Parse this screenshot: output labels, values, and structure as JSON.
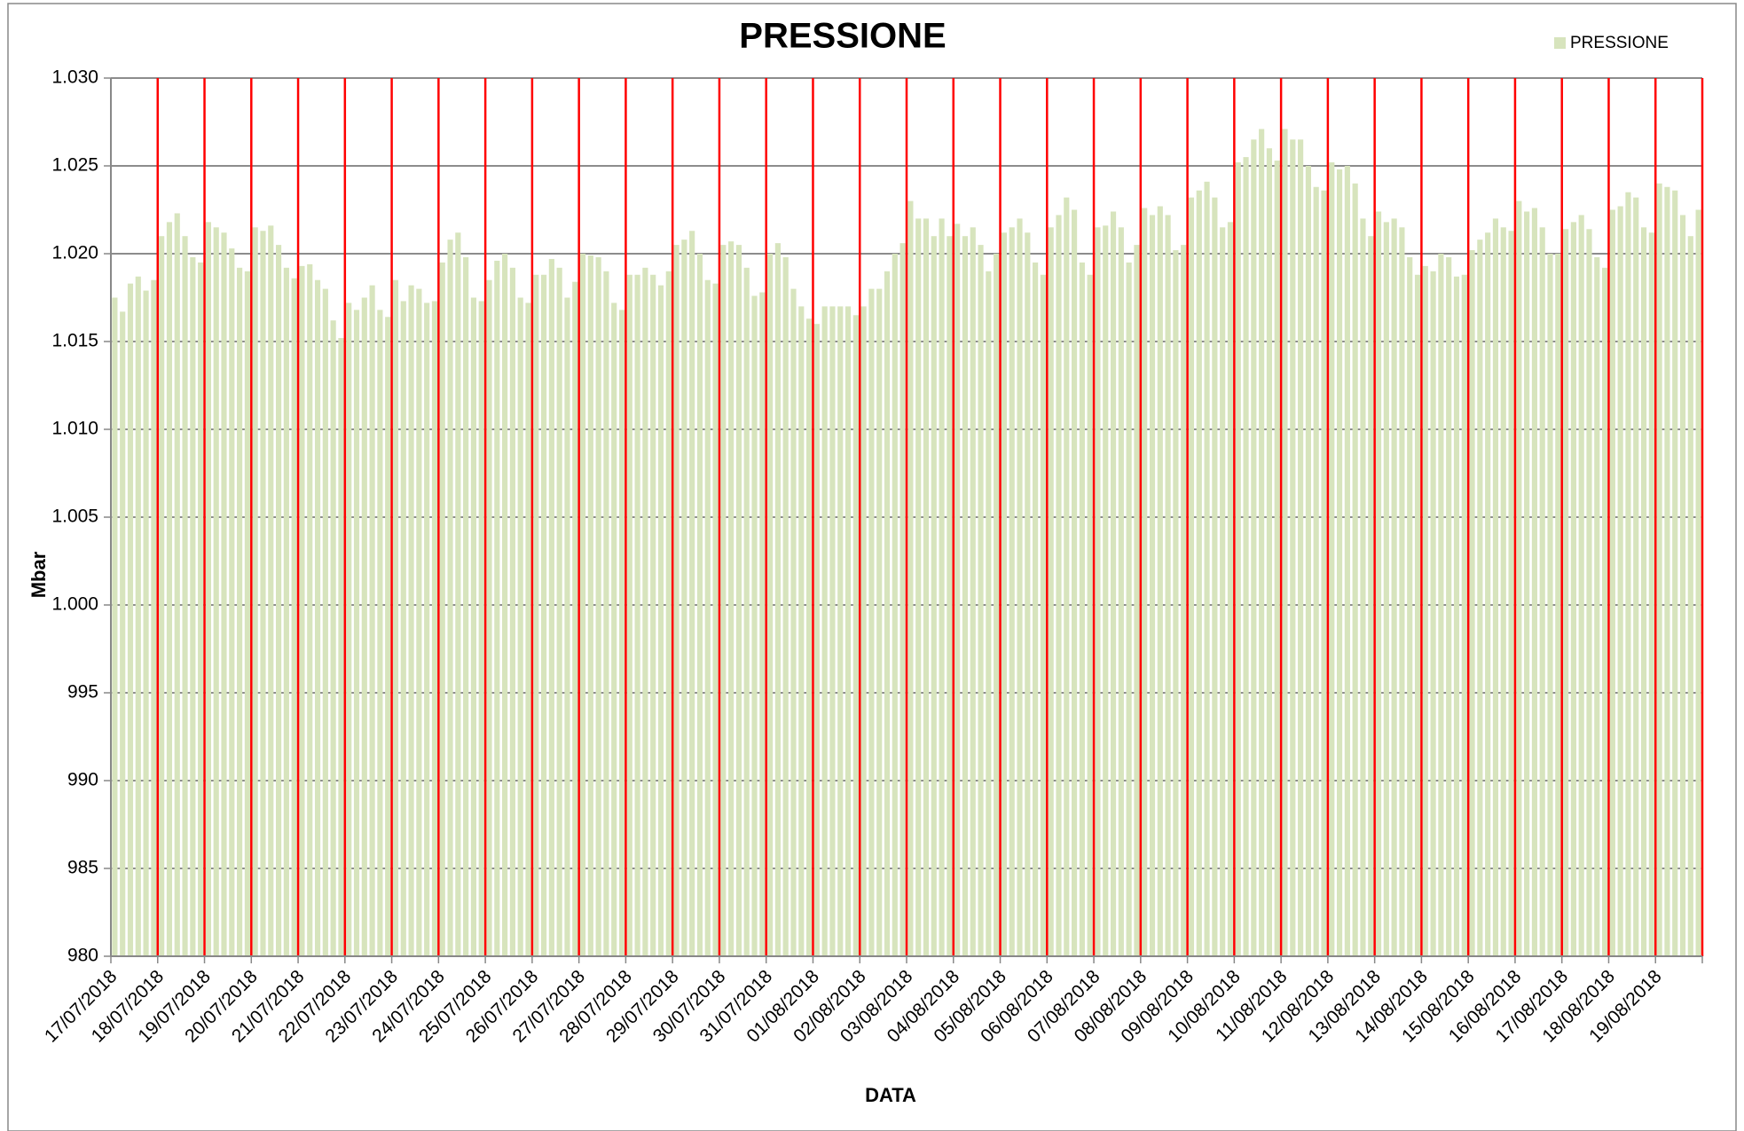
{
  "chart_data": {
    "type": "bar",
    "title": "PRESSIONE",
    "x_label": "DATA",
    "y_label": "Mbar",
    "legend_position": "top-right",
    "grid": true,
    "xgrid_color": "#ff0000",
    "grid_color": "#8c8c8c",
    "ylim": [
      980,
      1030
    ],
    "yticks": [
      980,
      985,
      990,
      995,
      {
        "value": 1000,
        "label": "1.000"
      },
      {
        "value": 1005,
        "label": "1.005"
      },
      {
        "value": 1010,
        "label": "1.010"
      },
      {
        "value": 1015,
        "label": "1.015"
      },
      {
        "value": 1020,
        "label": "1.020"
      },
      {
        "value": 1025,
        "label": "1.025"
      },
      {
        "value": 1030,
        "label": "1.030"
      }
    ],
    "categories": [
      "17/07/2018",
      null,
      null,
      null,
      null,
      null,
      "18/07/2018",
      null,
      null,
      null,
      null,
      null,
      "19/07/2018",
      null,
      null,
      null,
      null,
      null,
      "20/07/2018",
      null,
      null,
      null,
      null,
      null,
      "21/07/2018",
      null,
      null,
      null,
      null,
      null,
      "22/07/2018",
      null,
      null,
      null,
      null,
      null,
      "23/07/2018",
      null,
      null,
      null,
      null,
      null,
      "24/07/2018",
      null,
      null,
      null,
      null,
      null,
      "25/07/2018",
      null,
      null,
      null,
      null,
      null,
      "26/07/2018",
      null,
      null,
      null,
      null,
      null,
      "27/07/2018",
      null,
      null,
      null,
      null,
      null,
      "28/07/2018",
      null,
      null,
      null,
      null,
      null,
      "29/07/2018",
      null,
      null,
      null,
      null,
      null,
      "30/07/2018",
      null,
      null,
      null,
      null,
      null,
      "31/07/2018",
      null,
      null,
      null,
      null,
      null,
      "01/08/2018",
      null,
      null,
      null,
      null,
      null,
      "02/08/2018",
      null,
      null,
      null,
      null,
      null,
      "03/08/2018",
      null,
      null,
      null,
      null,
      null,
      "04/08/2018",
      null,
      null,
      null,
      null,
      null,
      "05/08/2018",
      null,
      null,
      null,
      null,
      null,
      "06/08/2018",
      null,
      null,
      null,
      null,
      null,
      "07/08/2018",
      null,
      null,
      null,
      null,
      null,
      "08/08/2018",
      null,
      null,
      null,
      null,
      null,
      "09/08/2018",
      null,
      null,
      null,
      null,
      null,
      "10/08/2018",
      null,
      null,
      null,
      null,
      null,
      "11/08/2018",
      null,
      null,
      null,
      null,
      null,
      "12/08/2018",
      null,
      null,
      null,
      null,
      null,
      "13/08/2018",
      null,
      null,
      null,
      null,
      null,
      "14/08/2018",
      null,
      null,
      null,
      null,
      null,
      "15/08/2018",
      null,
      null,
      null,
      null,
      null,
      "16/08/2018",
      null,
      null,
      null,
      null,
      null,
      "17/08/2018",
      null,
      null,
      null,
      null,
      null,
      "18/08/2018",
      null,
      null,
      null,
      null,
      null,
      "19/08/2018",
      null,
      null,
      null,
      null,
      null
    ],
    "series": [
      {
        "name": "PRESSIONE",
        "color": "#d7e4bd",
        "values": [
          1017.5,
          1016.7,
          1018.3,
          1018.7,
          1017.9,
          1018.5,
          1021,
          1021.8,
          1022.3,
          1021,
          1019.8,
          1019.5,
          1021.8,
          1021.5,
          1021.2,
          1020.3,
          1019.2,
          1019,
          1021.5,
          1021.3,
          1021.6,
          1020.5,
          1019.2,
          1018.6,
          1019.3,
          1019.4,
          1018.5,
          1018,
          1016.2,
          1015.2,
          1017.2,
          1016.8,
          1017.5,
          1018.2,
          1016.8,
          1016.4,
          1018.5,
          1017.3,
          1018.2,
          1018,
          1017.2,
          1017.3,
          1019.5,
          1020.8,
          1021.2,
          1019.8,
          1017.5,
          1017.3,
          1018.5,
          1019.6,
          1020,
          1019.2,
          1017.5,
          1017.2,
          1018.8,
          1018.8,
          1019.7,
          1019.2,
          1017.5,
          1018.4,
          1020,
          1019.9,
          1019.8,
          1019,
          1017.2,
          1016.8,
          1018.8,
          1018.8,
          1019.2,
          1018.8,
          1018.2,
          1019,
          1020.5,
          1020.8,
          1021.3,
          1020,
          1018.5,
          1018.3,
          1020.5,
          1020.7,
          1020.5,
          1019.2,
          1017.6,
          1017.8,
          1020,
          1020.6,
          1019.8,
          1018,
          1017,
          1016.3,
          1016,
          1017,
          1017,
          1017,
          1017,
          1016.5,
          1017,
          1018,
          1018,
          1019,
          1020,
          1020.6,
          1023,
          1022,
          1022,
          1021,
          1022,
          1021,
          1021.7,
          1021,
          1021.5,
          1020.5,
          1019,
          1020,
          1021.2,
          1021.5,
          1022,
          1021.2,
          1019.5,
          1018.8,
          1021.5,
          1022.2,
          1023.2,
          1022.5,
          1019.5,
          1018.8,
          1021.5,
          1021.6,
          1022.4,
          1021.5,
          1019.5,
          1020.5,
          1022.6,
          1022.2,
          1022.7,
          1022.2,
          1020.2,
          1020.5,
          1023.2,
          1023.6,
          1024.1,
          1023.2,
          1021.5,
          1021.8,
          1025.2,
          1025.5,
          1026.5,
          1027.1,
          1026,
          1025.3,
          1027.1,
          1026.5,
          1026.5,
          1025,
          1023.8,
          1023.6,
          1025.2,
          1024.8,
          1025,
          1024,
          1022,
          1021,
          1022.4,
          1021.8,
          1022,
          1021.5,
          1019.8,
          1018.8,
          1019.3,
          1019,
          1020,
          1019.8,
          1018.7,
          1018.8,
          1020.2,
          1020.8,
          1021.2,
          1022,
          1021.5,
          1021.3,
          1023,
          1022.4,
          1022.6,
          1021.5,
          1020,
          1020,
          1021.4,
          1021.8,
          1022.2,
          1021.4,
          1019.8,
          1019.2,
          1022.5,
          1022.7,
          1023.5,
          1023.2,
          1021.5,
          1021.2,
          1024,
          1023.8,
          1023.6,
          1022.2,
          1021,
          1022.5
        ]
      }
    ]
  }
}
